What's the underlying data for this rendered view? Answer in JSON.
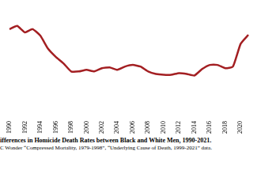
{
  "chart_data": {
    "type": "line",
    "title": "ifferences in Homicide Death Rates between Black and White Men, 1990-2021.",
    "source": "C Wonder “Compressed Mortality, 1979-1998”, “Underlying Cause of Death, 1999-2021” data.",
    "categories": [
      "1990",
      null,
      "1992",
      null,
      "1994",
      null,
      "1996",
      null,
      "1998",
      null,
      "2000",
      null,
      "2002",
      null,
      "2004",
      null,
      "2006",
      null,
      "2008",
      null,
      "2010",
      null,
      "2012",
      null,
      "2014",
      null,
      "2016",
      null,
      "2018",
      null,
      "2020",
      null
    ],
    "values": [
      55,
      57,
      53,
      55,
      51,
      43,
      38,
      34,
      29,
      29,
      30,
      29,
      31,
      31.5,
      30,
      32,
      33,
      32,
      29,
      27.5,
      27,
      27,
      28,
      27.5,
      26.5,
      30.5,
      33,
      33,
      31,
      32,
      46,
      51.5
    ],
    "color": "#a31f22",
    "ylim": [
      0,
      70
    ],
    "yticks": [
      0,
      10,
      20,
      30,
      40,
      50,
      60,
      70
    ],
    "grid": false,
    "tick_labels": "x"
  }
}
